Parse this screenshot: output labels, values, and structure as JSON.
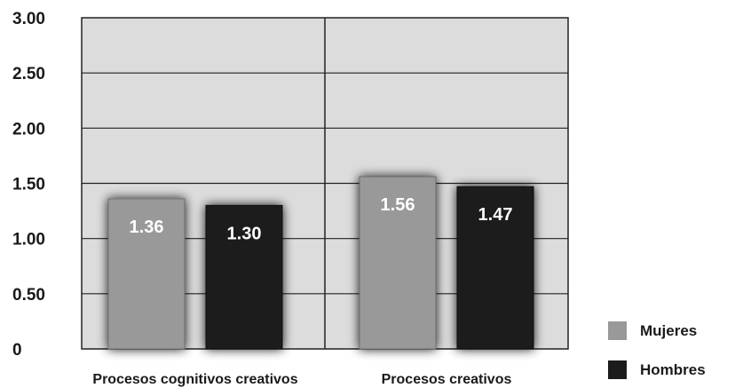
{
  "chart_data": {
    "type": "bar",
    "categories": [
      "Procesos cognitivos creativos",
      "Procesos creativos"
    ],
    "series": [
      {
        "name": "Mujeres",
        "values": [
          1.36,
          1.56
        ],
        "value_labels": [
          "1.36",
          "1.56"
        ],
        "color": "#999999"
      },
      {
        "name": "Hombres",
        "values": [
          1.3,
          1.47
        ],
        "value_labels": [
          "1.30",
          "1.47"
        ],
        "color": "#1c1c1c"
      }
    ],
    "ylim": [
      0,
      3
    ],
    "yticks": [
      0,
      0.5,
      1,
      1.5,
      2,
      2.5,
      3
    ],
    "ytick_labels": [
      "0",
      "0.50",
      "1.00",
      "1.50",
      "2.00",
      "2.50",
      "3.00"
    ],
    "grid": true,
    "legend_position": "bottom-right",
    "plot_background": "#dcdcdc"
  }
}
